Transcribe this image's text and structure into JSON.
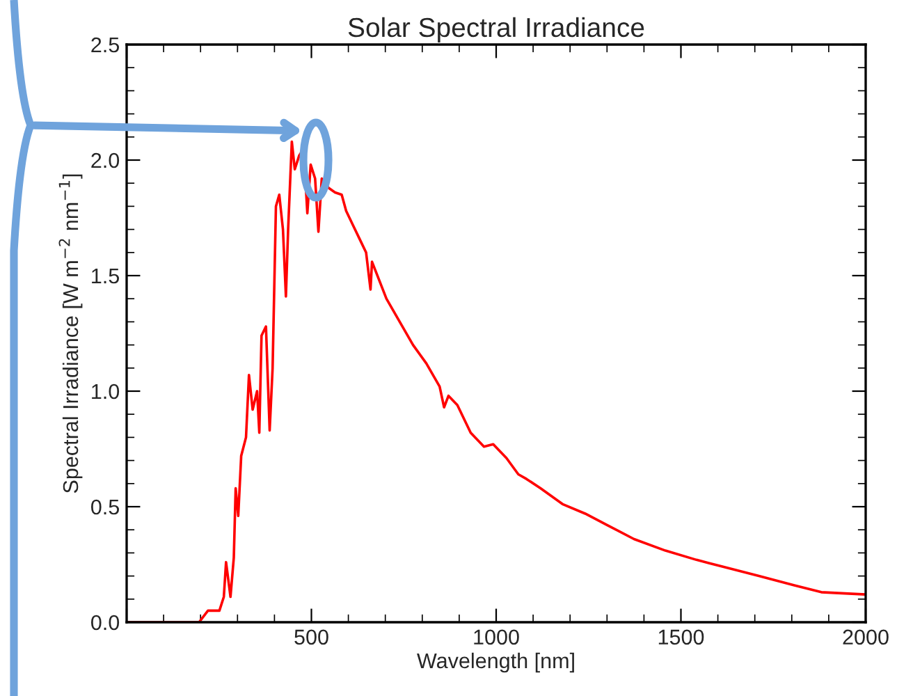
{
  "chart_data": {
    "type": "line",
    "title": "Solar Spectral Irradiance",
    "xlabel": "Wavelength [nm]",
    "ylabel": "Spectral Irradiance [W m$^{−2}$ nm$^{−1}$]",
    "x": [
      0,
      190,
      196,
      220,
      251,
      263,
      269,
      281,
      290,
      295,
      302,
      310,
      323,
      331,
      341,
      353,
      359,
      365,
      377,
      387,
      395,
      404,
      413,
      423,
      431,
      437,
      447,
      455,
      467,
      479,
      489,
      498,
      510,
      519,
      528,
      546,
      564,
      582,
      594,
      612,
      630,
      648,
      660,
      664,
      703,
      739,
      775,
      811,
      847,
      859,
      871,
      895,
      931,
      967,
      992,
      1028,
      1060,
      1082,
      1120,
      1181,
      1241,
      1301,
      1373,
      1458,
      1542,
      1614,
      1711,
      1807,
      1880,
      2000
    ],
    "series": [
      {
        "color": "#ff0000",
        "values": [
          0.0,
          0.0,
          0.0,
          0.05,
          0.05,
          0.11,
          0.26,
          0.11,
          0.28,
          0.58,
          0.46,
          0.72,
          0.8,
          1.07,
          0.92,
          1.0,
          0.82,
          1.24,
          1.28,
          0.83,
          1.1,
          1.8,
          1.85,
          1.7,
          1.41,
          1.7,
          2.08,
          1.96,
          2.02,
          2.05,
          1.77,
          1.98,
          1.92,
          1.69,
          1.92,
          1.88,
          1.86,
          1.85,
          1.78,
          1.72,
          1.66,
          1.6,
          1.44,
          1.56,
          1.4,
          1.3,
          1.2,
          1.12,
          1.02,
          0.93,
          0.98,
          0.94,
          0.82,
          0.76,
          0.77,
          0.71,
          0.64,
          0.62,
          0.58,
          0.51,
          0.47,
          0.42,
          0.36,
          0.31,
          0.27,
          0.24,
          0.2,
          0.16,
          0.13,
          0.12
        ]
      }
    ],
    "xlim": [
      0,
      2000
    ],
    "xticks": [
      {
        "value": 0,
        "label": null
      },
      500,
      1000,
      1500,
      2000
    ],
    "ylim": [
      0,
      2.5
    ],
    "yticks": [
      {
        "value": 0,
        "label": "0.0"
      },
      0.5,
      {
        "value": 1,
        "label": "1.0"
      },
      1.5,
      {
        "value": 2,
        "label": "2.0"
      },
      2.5
    ],
    "marker": "none",
    "line_style": "solid"
  }
}
